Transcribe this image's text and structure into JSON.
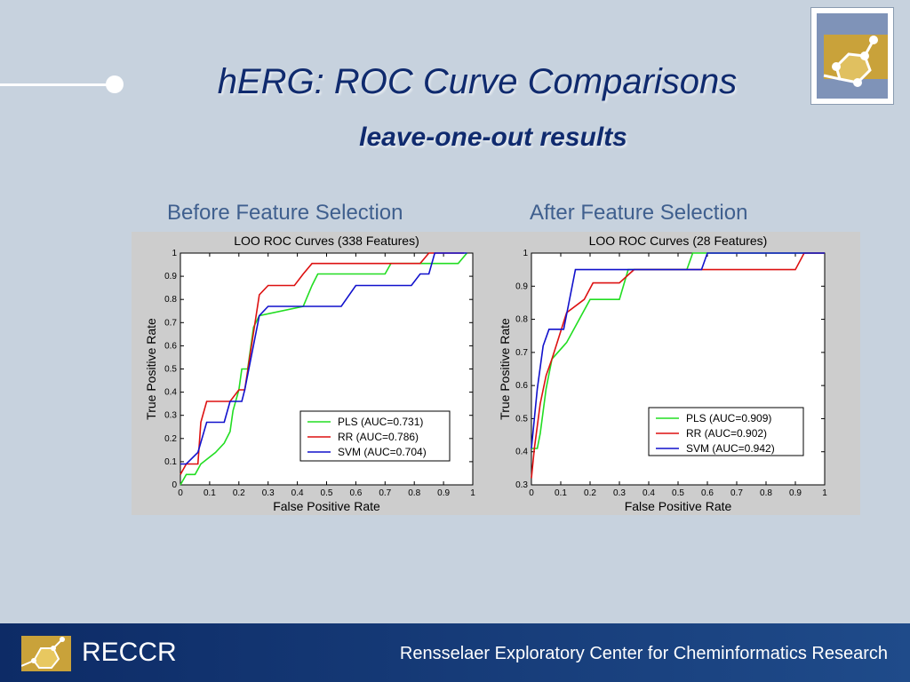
{
  "slide": {
    "title": "hERG: ROC Curve Comparisons",
    "subtitle": "leave-one-out results",
    "left_caption": "Before Feature Selection",
    "right_caption": "After Feature Selection"
  },
  "footer": {
    "brand": "RECCR",
    "org": "Rensselaer Exploratory Center for Cheminformatics Research"
  },
  "colors": {
    "pls": "#22dd22",
    "rr": "#dd1111",
    "svm": "#1111cc",
    "title": "#0f2a6e",
    "footer": "#123a78"
  },
  "icons": {
    "top_right_logo": "molecule-logo-icon",
    "footer_logo": "molecule-logo-icon"
  },
  "chart_data": [
    {
      "type": "line",
      "title": "LOO ROC Curves (338 Features)",
      "xlabel": "False Positive Rate",
      "ylabel": "True Positive Rate",
      "xlim": [
        0,
        1
      ],
      "ylim": [
        0,
        1
      ],
      "xticks": [
        "0",
        "0.1",
        "0.2",
        "0.3",
        "0.4",
        "0.5",
        "0.6",
        "0.7",
        "0.8",
        "0.9",
        "1"
      ],
      "yticks": [
        "0",
        "0.1",
        "0.2",
        "0.3",
        "0.4",
        "0.5",
        "0.6",
        "0.7",
        "0.8",
        "0.9",
        "1"
      ],
      "legend_position": "bottom-right",
      "grid": false,
      "series": [
        {
          "name": "PLS",
          "auc": "(AUC=0.731)",
          "x": [
            0,
            0.02,
            0.05,
            0.07,
            0.12,
            0.15,
            0.17,
            0.18,
            0.2,
            0.21,
            0.23,
            0.25,
            0.27,
            0.42,
            0.45,
            0.47,
            0.5,
            0.62,
            0.7,
            0.72,
            0.95,
            0.98
          ],
          "y": [
            0,
            0.045,
            0.045,
            0.09,
            0.14,
            0.18,
            0.23,
            0.32,
            0.41,
            0.5,
            0.5,
            0.68,
            0.73,
            0.77,
            0.86,
            0.91,
            0.91,
            0.91,
            0.91,
            0.955,
            0.955,
            1.0
          ]
        },
        {
          "name": "RR",
          "auc": "(AUC=0.786)",
          "x": [
            0,
            0.02,
            0.06,
            0.07,
            0.09,
            0.17,
            0.2,
            0.22,
            0.27,
            0.3,
            0.33,
            0.39,
            0.42,
            0.45,
            0.7,
            0.72,
            0.82,
            0.85,
            0.97
          ],
          "y": [
            0.045,
            0.09,
            0.09,
            0.27,
            0.36,
            0.36,
            0.41,
            0.41,
            0.82,
            0.86,
            0.86,
            0.86,
            0.91,
            0.955,
            0.955,
            0.955,
            0.955,
            1.0,
            1.0
          ]
        },
        {
          "name": "SVM",
          "auc": "(AUC=0.704)",
          "x": [
            0,
            0.02,
            0.06,
            0.09,
            0.15,
            0.17,
            0.21,
            0.22,
            0.27,
            0.3,
            0.42,
            0.55,
            0.6,
            0.65,
            0.75,
            0.79,
            0.82,
            0.85,
            0.87,
            0.98
          ],
          "y": [
            0.09,
            0.09,
            0.14,
            0.27,
            0.27,
            0.36,
            0.36,
            0.41,
            0.73,
            0.77,
            0.77,
            0.77,
            0.86,
            0.86,
            0.86,
            0.86,
            0.91,
            0.91,
            1.0,
            1.0
          ]
        }
      ]
    },
    {
      "type": "line",
      "title": "LOO ROC Curves (28 Features)",
      "xlabel": "False Positive Rate",
      "ylabel": "True Positive Rate",
      "xlim": [
        0,
        1
      ],
      "ylim": [
        0.3,
        1
      ],
      "xticks": [
        "0",
        "0.1",
        "0.2",
        "0.3",
        "0.4",
        "0.5",
        "0.6",
        "0.7",
        "0.8",
        "0.9",
        "1"
      ],
      "yticks": [
        "0.3",
        "0.4",
        "0.5",
        "0.6",
        "0.7",
        "0.8",
        "0.9",
        "1"
      ],
      "legend_position": "bottom-right",
      "grid": false,
      "series": [
        {
          "name": "PLS",
          "auc": "(AUC=0.909)",
          "x": [
            0,
            0.02,
            0.03,
            0.05,
            0.07,
            0.12,
            0.2,
            0.3,
            0.33,
            0.35,
            0.45,
            0.5,
            0.53,
            0.55,
            0.58,
            0.6,
            1.0
          ],
          "y": [
            0.41,
            0.41,
            0.455,
            0.59,
            0.68,
            0.73,
            0.86,
            0.86,
            0.95,
            0.95,
            0.95,
            0.95,
            0.95,
            1.0,
            1.0,
            1.0,
            1.0
          ]
        },
        {
          "name": "RR",
          "auc": "(AUC=0.902)",
          "x": [
            0,
            0.01,
            0.03,
            0.05,
            0.07,
            0.12,
            0.18,
            0.21,
            0.3,
            0.35,
            0.45,
            0.6,
            0.75,
            0.9,
            0.93,
            1.0
          ],
          "y": [
            0.32,
            0.41,
            0.545,
            0.63,
            0.68,
            0.82,
            0.86,
            0.91,
            0.91,
            0.95,
            0.95,
            0.95,
            0.95,
            0.95,
            1.0,
            1.0
          ]
        },
        {
          "name": "SVM",
          "auc": "(AUC=0.942)",
          "x": [
            0,
            0.01,
            0.02,
            0.04,
            0.06,
            0.11,
            0.15,
            0.2,
            0.3,
            0.4,
            0.5,
            0.58,
            0.6,
            0.65,
            1.0
          ],
          "y": [
            0.41,
            0.5,
            0.59,
            0.72,
            0.77,
            0.77,
            0.95,
            0.95,
            0.95,
            0.95,
            0.95,
            0.95,
            1.0,
            1.0,
            1.0
          ]
        }
      ]
    }
  ]
}
